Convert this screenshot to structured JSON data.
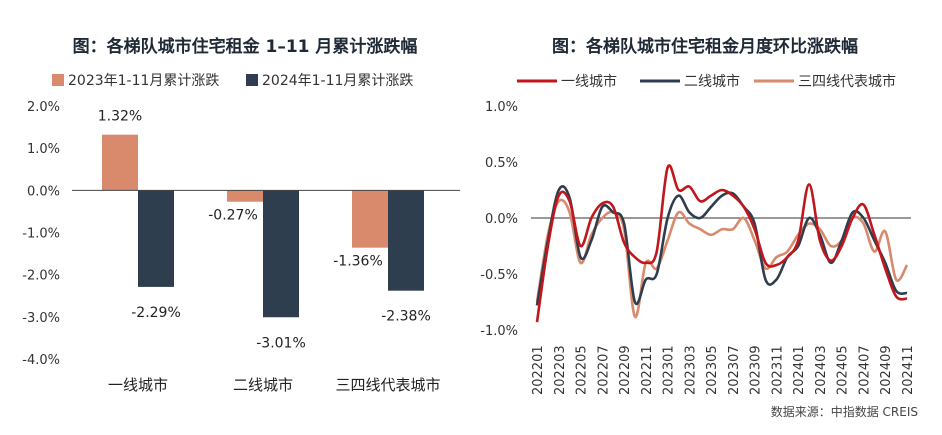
{
  "colors": {
    "y2023": "#D98A6C",
    "y2024": "#2F3E4E",
    "tier1": "#C0161C",
    "tier2": "#2F3E4E",
    "tier34": "#D98A6C"
  },
  "source_note": "数据来源：中指数据 CREIS",
  "chart_data": [
    {
      "type": "bar",
      "title": "图：各梯队城市住宅租金 1–11 月累计涨跌幅",
      "categories": [
        "一线城市",
        "二线城市",
        "三四线代表城市"
      ],
      "series": [
        {
          "name": "2023年1-11月累计涨跌",
          "values": [
            1.32,
            -0.27,
            -1.36
          ],
          "labels": [
            "1.32%",
            "-0.27%",
            "-1.36%"
          ]
        },
        {
          "name": "2024年1-11月累计涨跌",
          "values": [
            -2.29,
            -3.01,
            -2.38
          ],
          "labels": [
            "-2.29%",
            "-3.01%",
            "-2.38%"
          ]
        }
      ],
      "ylim": [
        -4.0,
        2.0
      ],
      "yticks": [
        "2.0%",
        "1.0%",
        "0.0%",
        "-1.0%",
        "-2.0%",
        "-3.0%",
        "-4.0%"
      ],
      "legend": "top"
    },
    {
      "type": "line",
      "title": "图：各梯队城市住宅租金月度环比涨跌幅",
      "x": [
        "202201",
        "202202",
        "202203",
        "202204",
        "202205",
        "202206",
        "202207",
        "202208",
        "202209",
        "202210",
        "202211",
        "202212",
        "202301",
        "202302",
        "202303",
        "202304",
        "202305",
        "202306",
        "202307",
        "202308",
        "202309",
        "202310",
        "202311",
        "202312",
        "202401",
        "202402",
        "202403",
        "202404",
        "202405",
        "202406",
        "202407",
        "202408",
        "202409",
        "202410",
        "202411"
      ],
      "xticks": [
        "202201",
        "202203",
        "202205",
        "202207",
        "202209",
        "202211",
        "202301",
        "202303",
        "202305",
        "202307",
        "202309",
        "202311",
        "202401",
        "202403",
        "202405",
        "202407",
        "202409",
        "202411"
      ],
      "series": [
        {
          "name": "一线城市",
          "values": [
            -0.93,
            -0.25,
            0.2,
            0.15,
            -0.25,
            0.0,
            0.13,
            0.1,
            -0.22,
            -0.35,
            -0.4,
            -0.3,
            0.45,
            0.25,
            0.28,
            0.15,
            0.2,
            0.25,
            0.2,
            0.1,
            -0.1,
            -0.4,
            -0.42,
            -0.35,
            -0.2,
            0.3,
            -0.2,
            -0.38,
            -0.25,
            0.0,
            0.12,
            -0.15,
            -0.45,
            -0.7,
            -0.72
          ]
        },
        {
          "name": "二线城市",
          "values": [
            -0.78,
            -0.2,
            0.25,
            0.18,
            -0.35,
            -0.2,
            0.1,
            0.05,
            -0.05,
            -0.75,
            -0.55,
            -0.5,
            0.0,
            0.2,
            0.05,
            0.0,
            0.1,
            0.2,
            0.22,
            0.1,
            -0.05,
            -0.55,
            -0.55,
            -0.35,
            -0.25,
            0.0,
            -0.15,
            -0.4,
            -0.2,
            0.05,
            0.0,
            -0.2,
            -0.4,
            -0.65,
            -0.67
          ]
        },
        {
          "name": "三四线代表城市",
          "values": [
            -0.75,
            -0.15,
            0.15,
            0.05,
            -0.4,
            -0.15,
            0.0,
            0.05,
            -0.1,
            -0.88,
            -0.4,
            -0.45,
            -0.2,
            0.05,
            -0.05,
            -0.1,
            -0.15,
            -0.1,
            -0.1,
            0.0,
            -0.2,
            -0.45,
            -0.35,
            -0.3,
            -0.15,
            -0.05,
            -0.1,
            -0.25,
            -0.2,
            0.0,
            -0.05,
            -0.3,
            -0.12,
            -0.55,
            -0.42
          ]
        }
      ],
      "ylim": [
        -1.0,
        1.0
      ],
      "yticks": [
        "1.0%",
        "0.5%",
        "0.0%",
        "-0.5%",
        "-1.0%"
      ],
      "legend": "top"
    }
  ]
}
